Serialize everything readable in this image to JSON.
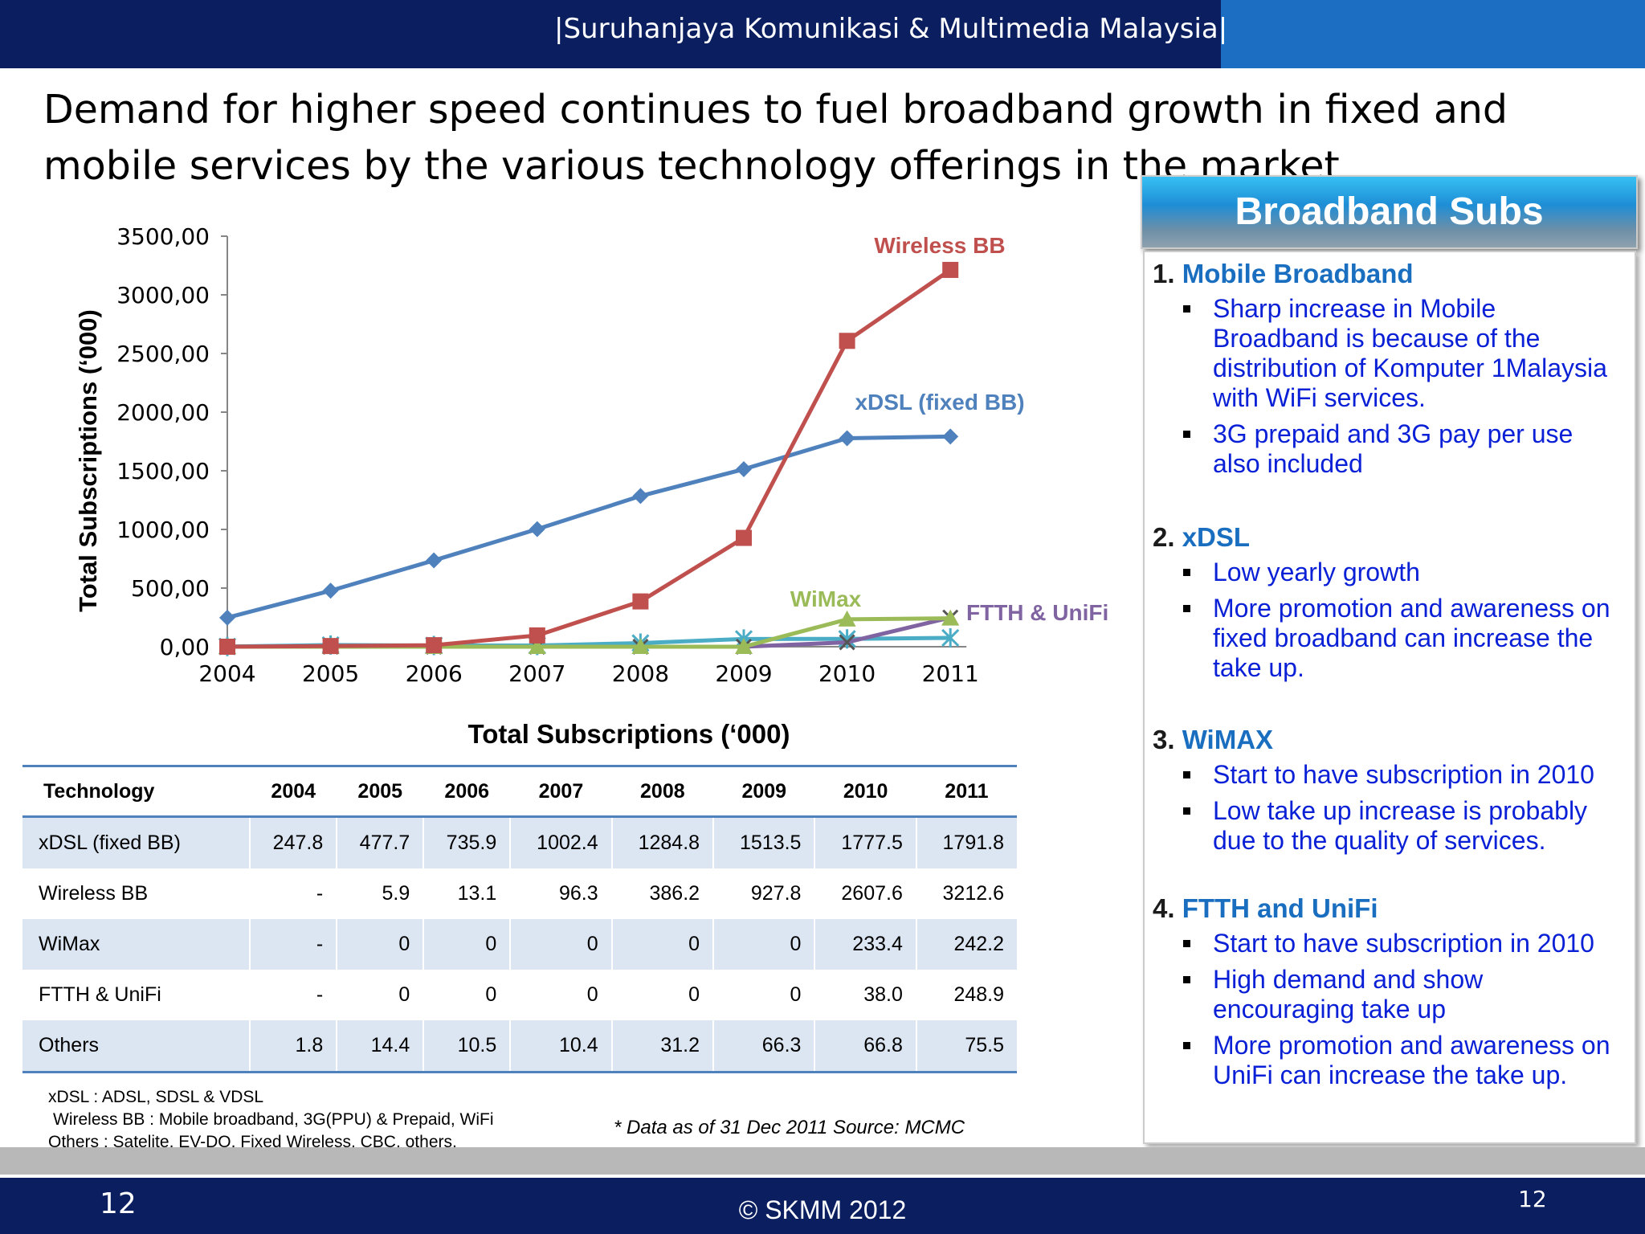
{
  "header": {
    "org": "|Suruhanjaya Komunikasi & Multimedia Malaysia|"
  },
  "headline": "Demand for higher speed continues to fuel broadband growth in fixed and mobile services by the various technology offerings in the market",
  "chart_data": {
    "type": "line",
    "ylabel": "Total Subscriptions (‘000)",
    "x": [
      "2004",
      "2005",
      "2006",
      "2007",
      "2008",
      "2009",
      "2010",
      "2011"
    ],
    "yticks": [
      "0,00",
      "500,00",
      "1000,00",
      "1500,00",
      "2000,00",
      "2500,00",
      "3000,00",
      "3500,00"
    ],
    "ylim": [
      0,
      3500
    ],
    "series": [
      {
        "name": "xDSL (fixed BB)",
        "color": "#4f81bd",
        "marker": "diamond",
        "values": [
          247.8,
          477.7,
          735.9,
          1002.4,
          1284.8,
          1513.5,
          1777.5,
          1791.8
        ]
      },
      {
        "name": "Wireless BB",
        "color": "#c0504d",
        "marker": "square",
        "values": [
          0,
          5.9,
          13.1,
          96.3,
          386.2,
          927.8,
          2607.6,
          3212.6
        ]
      },
      {
        "name": "WiMax",
        "color": "#9bbb59",
        "marker": "triangle",
        "values": [
          0,
          0,
          0,
          0,
          0,
          0,
          233.4,
          242.2
        ]
      },
      {
        "name": "FTTH & UniFi",
        "color": "#8064a2",
        "marker": "x",
        "values": [
          0,
          0,
          0,
          0,
          0,
          0,
          38.0,
          248.9
        ]
      },
      {
        "name": "",
        "color": "#4bacc6",
        "marker": "star",
        "values": [
          1.8,
          14.4,
          10.5,
          10.4,
          31.2,
          66.3,
          66.8,
          75.5
        ]
      }
    ]
  },
  "table": {
    "title": "Total Subscriptions (‘000)",
    "headers": [
      "Technology",
      "2004",
      "2005",
      "2006",
      "2007",
      "2008",
      "2009",
      "2010",
      "2011"
    ],
    "rows": [
      [
        "xDSL (fixed BB)",
        "247.8",
        "477.7",
        "735.9",
        "1002.4",
        "1284.8",
        "1513.5",
        "1777.5",
        "1791.8"
      ],
      [
        "Wireless BB",
        "-",
        "5.9",
        "13.1",
        "96.3",
        "386.2",
        "927.8",
        "2607.6",
        "3212.6"
      ],
      [
        "WiMax",
        "-",
        "0",
        "0",
        "0",
        "0",
        "0",
        "233.4",
        "242.2"
      ],
      [
        "FTTH & UniFi",
        "-",
        "0",
        "0",
        "0",
        "0",
        "0",
        "38.0",
        "248.9"
      ],
      [
        "Others",
        "1.8",
        "14.4",
        "10.5",
        "10.4",
        "31.2",
        "66.3",
        "66.8",
        "75.5"
      ]
    ]
  },
  "notes": [
    "xDSL : ADSL, SDSL & VDSL",
    "Wireless BB : Mobile broadband, 3G(PPU) & Prepaid, WiFi",
    "Others : Satelite, EV-DO, Fixed Wireless, CBC, others."
  ],
  "source": "* Data as of 31 Dec 2011  Source: MCMC",
  "panel": {
    "title": "Broadband Subs",
    "sections": [
      {
        "num": "1.",
        "title": "Mobile Broadband",
        "bullets": [
          "Sharp increase in Mobile Broadband is because of the distribution of Komputer 1Malaysia with WiFi services.",
          "3G prepaid and 3G pay per use also included"
        ]
      },
      {
        "num": "2.",
        "title": "xDSL",
        "bullets": [
          "Low yearly growth",
          "More promotion and awareness on fixed broadband can increase the take up."
        ]
      },
      {
        "num": "3.",
        "title": "WiMAX",
        "bullets": [
          "Start to have subscription in 2010",
          "Low take up increase  is probably due to the quality of services."
        ]
      },
      {
        "num": "4.",
        "title": "FTTH and UniFi",
        "bullets": [
          "Start to have subscription in 2010",
          "High demand and show encouraging take up",
          "More promotion and awareness on UniFi can increase the take up."
        ]
      }
    ]
  },
  "footer": {
    "page_left": "12",
    "copyright": "© SKMM 2012",
    "page_right": "12"
  }
}
